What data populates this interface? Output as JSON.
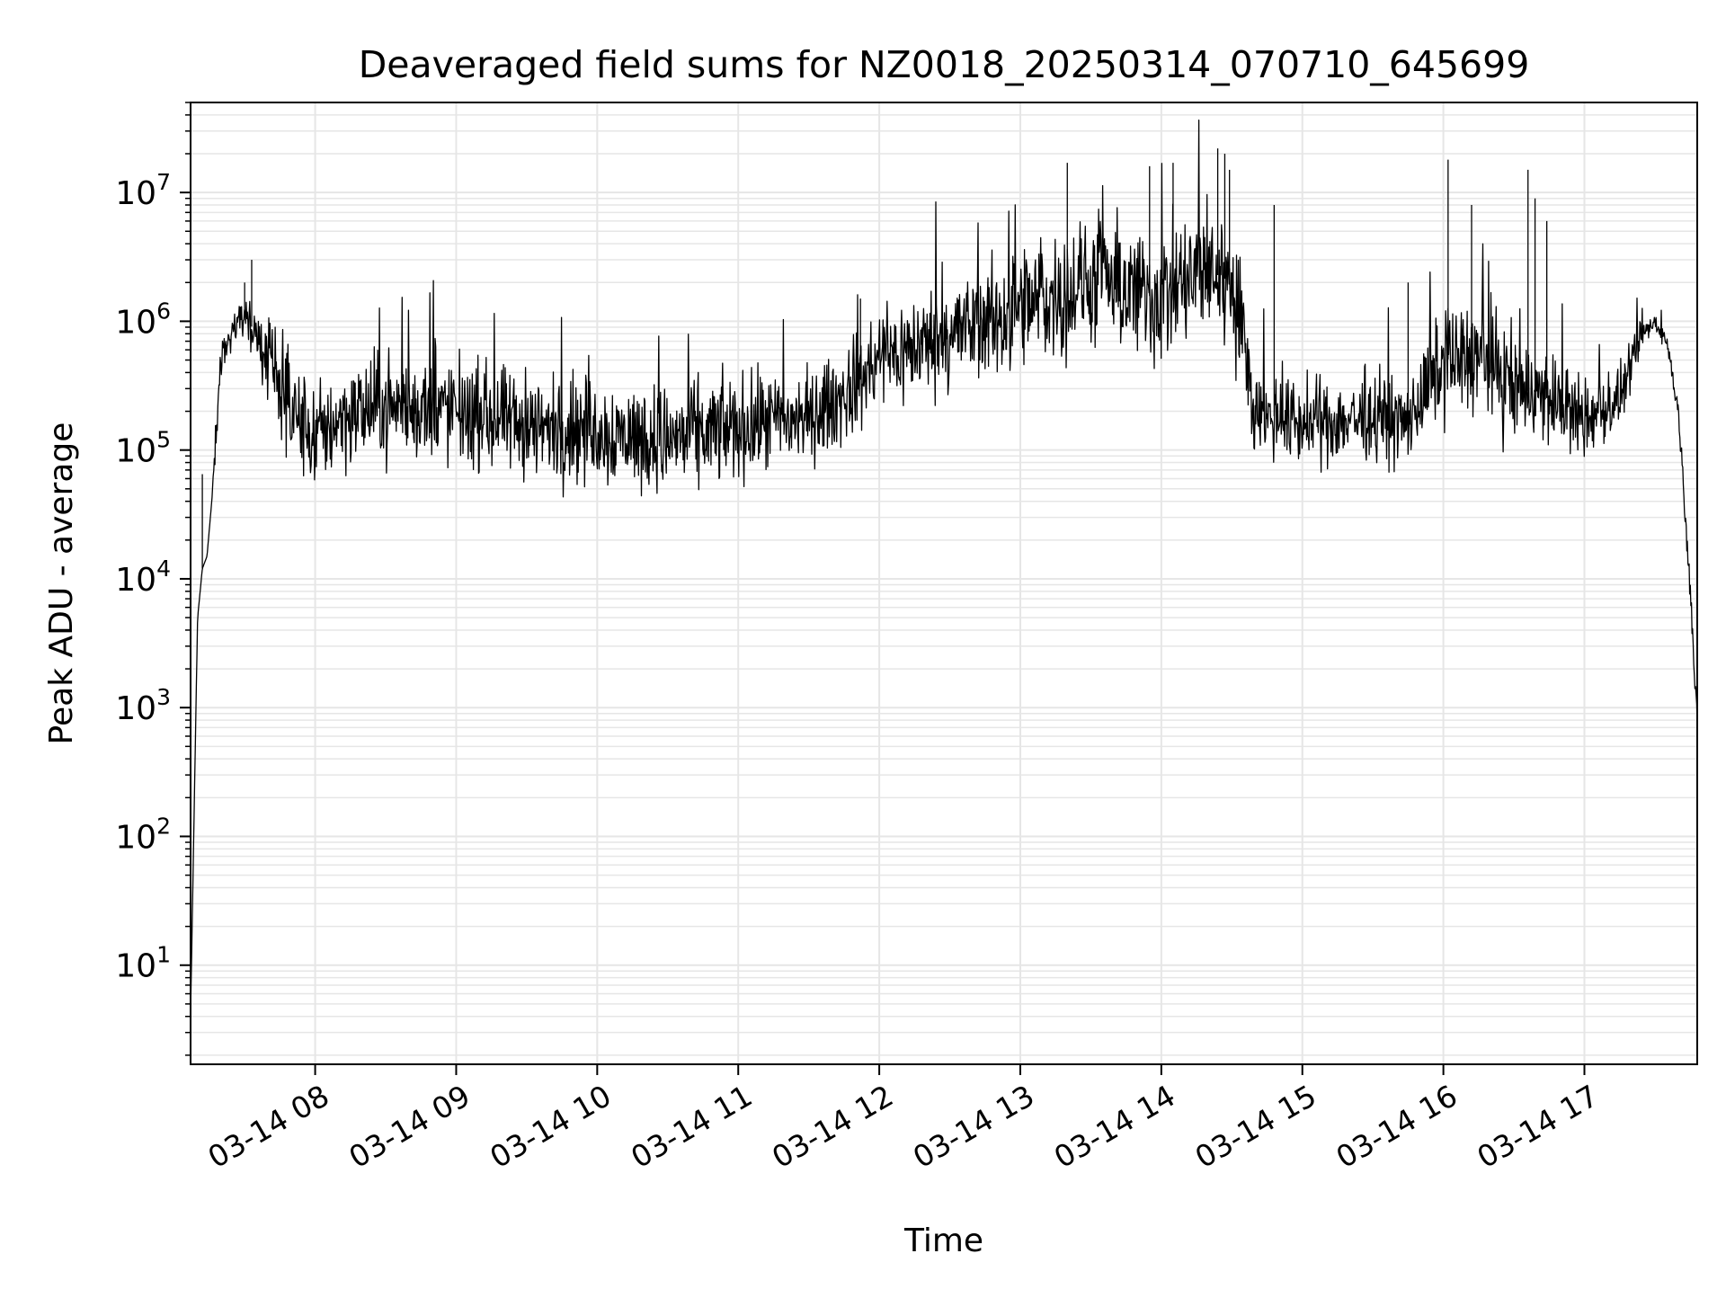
{
  "chart_data": {
    "type": "line",
    "title": "Deaveraged field sums for NZ0018_20250314_070710_645699",
    "xlabel": "Time",
    "ylabel": "Peak ADU - average",
    "yscale": "log",
    "ylim": [
      1.7,
      50000000
    ],
    "xlim": [
      "03-14 07:07",
      "03-14 17:48"
    ],
    "grid": true,
    "line_color": "#000000",
    "grid_color": "#e6e6e6",
    "x_ticks": [
      {
        "time": "03-14 08:00",
        "label": "03-14 08"
      },
      {
        "time": "03-14 09:00",
        "label": "03-14 09"
      },
      {
        "time": "03-14 10:00",
        "label": "03-14 10"
      },
      {
        "time": "03-14 11:00",
        "label": "03-14 11"
      },
      {
        "time": "03-14 12:00",
        "label": "03-14 12"
      },
      {
        "time": "03-14 13:00",
        "label": "03-14 13"
      },
      {
        "time": "03-14 14:00",
        "label": "03-14 14"
      },
      {
        "time": "03-14 15:00",
        "label": "03-14 15"
      },
      {
        "time": "03-14 16:00",
        "label": "03-14 16"
      },
      {
        "time": "03-14 17:00",
        "label": "03-14 17"
      }
    ],
    "y_ticks": [
      {
        "value": 10,
        "base": "10",
        "exp": "1"
      },
      {
        "value": 100,
        "base": "10",
        "exp": "2"
      },
      {
        "value": 1000,
        "base": "10",
        "exp": "3"
      },
      {
        "value": 10000,
        "base": "10",
        "exp": "4"
      },
      {
        "value": 100000,
        "base": "10",
        "exp": "5"
      },
      {
        "value": 1000000,
        "base": "10",
        "exp": "6"
      },
      {
        "value": 10000000,
        "base": "10",
        "exp": "7"
      }
    ],
    "series": [
      {
        "x": [
          "03-14 07:07",
          "03-14 07:09",
          "03-14 07:10",
          "03-14 07:12",
          "03-14 07:14",
          "03-14 07:16",
          "03-14 07:18",
          "03-14 07:20",
          "03-14 07:25",
          "03-14 07:30",
          "03-14 07:35",
          "03-14 07:40",
          "03-14 07:45",
          "03-14 07:50",
          "03-14 08:00",
          "03-14 08:10",
          "03-14 08:30",
          "03-14 09:00",
          "03-14 09:30",
          "03-14 10:00",
          "03-14 10:30",
          "03-14 11:00",
          "03-14 11:30",
          "03-14 11:45",
          "03-14 12:00",
          "03-14 12:30",
          "03-14 13:00",
          "03-14 13:30",
          "03-14 14:00",
          "03-14 14:20",
          "03-14 14:30",
          "03-14 14:40",
          "03-14 15:00",
          "03-14 15:30",
          "03-14 15:45",
          "03-14 16:00",
          "03-14 16:15",
          "03-14 16:30",
          "03-14 16:40",
          "03-14 17:00",
          "03-14 17:15",
          "03-14 17:25",
          "03-14 17:30",
          "03-14 17:35",
          "03-14 17:40",
          "03-14 17:45",
          "03-14 17:48"
        ],
        "y": [
          4,
          500,
          5000,
          12000,
          15000,
          40000,
          150000,
          500000,
          900000,
          1100000,
          800000,
          500000,
          350000,
          200000,
          120000,
          180000,
          220000,
          200000,
          150000,
          140000,
          120000,
          150000,
          180000,
          260000,
          500000,
          800000,
          1200000,
          2000000,
          1500000,
          2500000,
          2000000,
          200000,
          160000,
          180000,
          160000,
          500000,
          550000,
          300000,
          280000,
          170000,
          250000,
          800000,
          1000000,
          700000,
          200000,
          9000,
          700
        ],
        "noise_log10": [
          0,
          0,
          0,
          0,
          0,
          0,
          0.2,
          0.25,
          0.2,
          0.15,
          0.3,
          0.4,
          0.45,
          0.5,
          0.5,
          0.5,
          0.5,
          0.5,
          0.5,
          0.5,
          0.5,
          0.5,
          0.45,
          0.45,
          0.5,
          0.5,
          0.6,
          0.6,
          0.65,
          0.65,
          0.6,
          0.4,
          0.4,
          0.4,
          0.4,
          0.5,
          0.55,
          0.5,
          0.45,
          0.4,
          0.3,
          0.15,
          0.1,
          0.1,
          0.1,
          0.2,
          0.1
        ]
      }
    ],
    "spikes": [
      {
        "time": "03-14 07:12",
        "value": 65000
      },
      {
        "time": "03-14 07:33",
        "value": 3000000
      },
      {
        "time": "03-14 07:30",
        "value": 2000000
      },
      {
        "time": "03-14 13:20",
        "value": 17000000
      },
      {
        "time": "03-14 13:55",
        "value": 16000000
      },
      {
        "time": "03-14 14:05",
        "value": 17000000
      },
      {
        "time": "03-14 14:24",
        "value": 22000000
      },
      {
        "time": "03-14 14:27",
        "value": 20000000
      },
      {
        "time": "03-14 14:29",
        "value": 15000000
      },
      {
        "time": "03-14 14:48",
        "value": 8000000
      },
      {
        "time": "03-14 16:02",
        "value": 18000000
      },
      {
        "time": "03-14 16:12",
        "value": 8000000
      },
      {
        "time": "03-14 16:36",
        "value": 15000000
      },
      {
        "time": "03-14 16:39",
        "value": 9000000
      },
      {
        "time": "03-14 16:44",
        "value": 6000000
      },
      {
        "time": "03-14 15:45",
        "value": 2000000
      },
      {
        "time": "03-14 11:52",
        "value": 1500000
      }
    ]
  }
}
